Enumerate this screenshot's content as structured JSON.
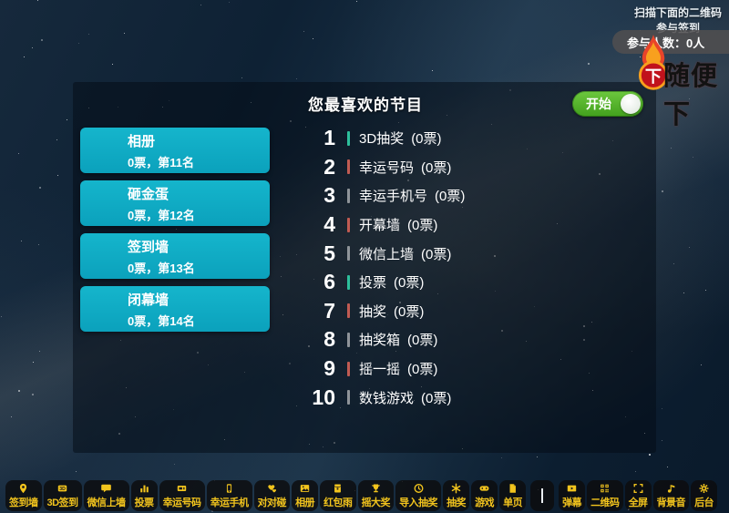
{
  "header": {
    "scan_note": "扫描下面的二维码参与签到",
    "participants_label": "参与人数：0人",
    "watermark_text": "随便下",
    "watermark_badge": "下"
  },
  "panel": {
    "title": "您最喜欢的节目",
    "start_toggle_label": "开始",
    "side_cards": [
      {
        "label": "相册",
        "stats": "0票，第11名"
      },
      {
        "label": "砸金蛋",
        "stats": "0票，第12名"
      },
      {
        "label": "签到墙",
        "stats": "0票，第13名"
      },
      {
        "label": "闭幕墙",
        "stats": "0票，第14名"
      }
    ],
    "ranking": [
      {
        "rank": "1",
        "label": "3D抽奖",
        "votes": "(0票)",
        "bar_color": "#2dbf9b"
      },
      {
        "rank": "2",
        "label": "幸运号码",
        "votes": "(0票)",
        "bar_color": "#c15b52"
      },
      {
        "rank": "3",
        "label": "幸运手机号",
        "votes": "(0票)",
        "bar_color": "#8f9499"
      },
      {
        "rank": "4",
        "label": "开幕墙",
        "votes": "(0票)",
        "bar_color": "#c15b52"
      },
      {
        "rank": "5",
        "label": "微信上墙",
        "votes": "(0票)",
        "bar_color": "#8f9499"
      },
      {
        "rank": "6",
        "label": "投票",
        "votes": "(0票)",
        "bar_color": "#2dbf9b"
      },
      {
        "rank": "7",
        "label": "抽奖",
        "votes": "(0票)",
        "bar_color": "#c15b52"
      },
      {
        "rank": "8",
        "label": "抽奖箱",
        "votes": "(0票)",
        "bar_color": "#8f9499"
      },
      {
        "rank": "9",
        "label": "摇一摇",
        "votes": "(0票)",
        "bar_color": "#c15b52"
      },
      {
        "rank": "10",
        "label": "数钱游戏",
        "votes": "(0票)",
        "bar_color": "#8f9499"
      }
    ]
  },
  "footer": {
    "left_buttons": [
      {
        "label": "签到墙",
        "icon": "pin-icon"
      },
      {
        "label": "3D签到",
        "icon": "3d-icon"
      },
      {
        "label": "微信上墙",
        "icon": "chat-icon"
      },
      {
        "label": "投票",
        "icon": "bar-chart-icon"
      },
      {
        "label": "幸运号码",
        "icon": "ticket-icon"
      },
      {
        "label": "幸运手机",
        "icon": "phone-icon"
      },
      {
        "label": "对对碰",
        "icon": "hearts-icon"
      },
      {
        "label": "相册",
        "icon": "photo-icon"
      },
      {
        "label": "红包雨",
        "icon": "red-packet-icon"
      },
      {
        "label": "摇大奖",
        "icon": "trophy-icon"
      },
      {
        "label": "导入抽奖",
        "icon": "clock-icon"
      },
      {
        "label": "抽奖",
        "icon": "spark-icon"
      },
      {
        "label": "游戏",
        "icon": "gamepad-icon"
      },
      {
        "label": "单页",
        "icon": "page-icon"
      }
    ],
    "right_buttons": [
      {
        "label": "弹幕",
        "icon": "danmaku-icon"
      },
      {
        "label": "二维码",
        "icon": "qr-icon"
      },
      {
        "label": "全屏",
        "icon": "fullscreen-icon"
      },
      {
        "label": "背景音",
        "icon": "music-icon"
      },
      {
        "label": "后台",
        "icon": "gear-icon"
      }
    ]
  },
  "colors": {
    "card_teal": "#10adc4",
    "toggle_green": "#4fae24",
    "footer_gold": "#f2c41d",
    "rank_green": "#2dbf9b",
    "rank_red": "#c15b52",
    "rank_gray": "#8f9499"
  }
}
